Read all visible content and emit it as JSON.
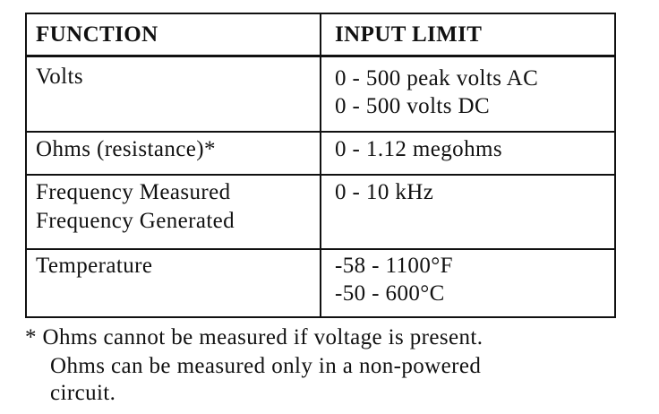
{
  "table": {
    "header": [
      "FUNCTION",
      "INPUT LIMIT"
    ],
    "rows": [
      [
        [
          "Volts"
        ],
        [
          "0 - 500 peak volts AC",
          "0 - 500 volts DC"
        ]
      ],
      [
        [
          "Ohms (resistance)*"
        ],
        [
          "0 - 1.12 megohms"
        ]
      ],
      [
        [
          "Frequency Measured",
          "Frequency Generated"
        ],
        [
          "0 - 10 kHz"
        ]
      ],
      [
        [
          "Temperature"
        ],
        [
          "-58 - 1100°F",
          "-50 - 600°C"
        ]
      ]
    ]
  },
  "footnote": [
    "* Ohms cannot be measured if voltage is present.",
    "Ohms can be measured only in a non-powered",
    "circuit."
  ]
}
